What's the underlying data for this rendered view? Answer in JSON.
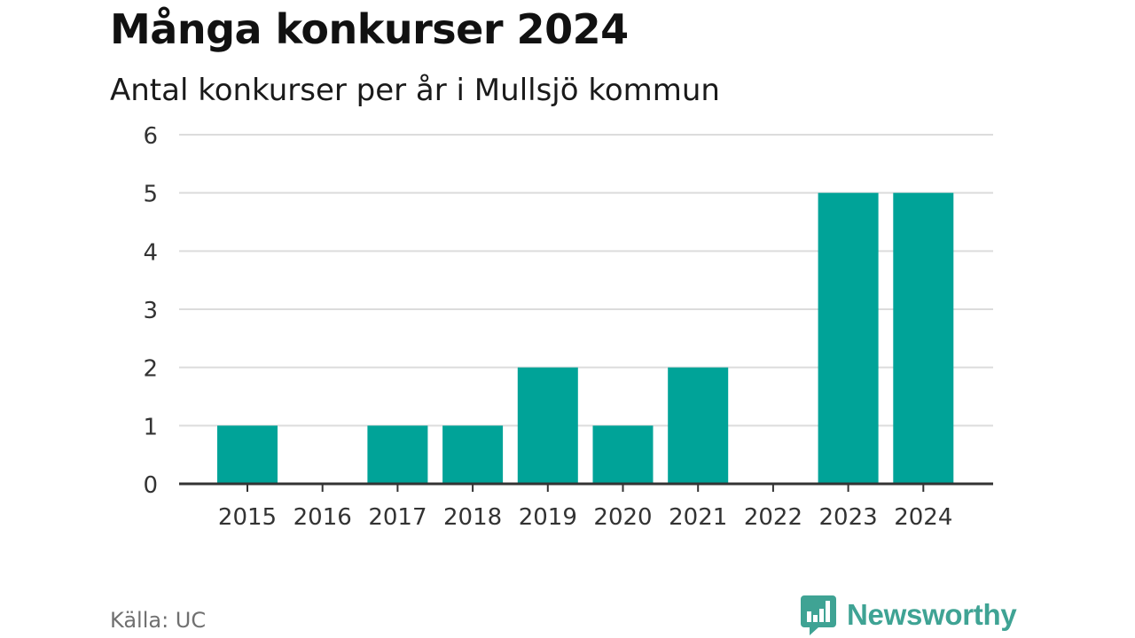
{
  "title": "Många konkurser 2024",
  "subtitle": "Antal konkurser per år i Mullsjö kommun",
  "source": "Källa: UC",
  "brand": {
    "name": "Newsworthy",
    "color": "#3fa394"
  },
  "chart_data": {
    "type": "bar",
    "title": "Många konkurser 2024",
    "subtitle": "Antal konkurser per år i Mullsjö kommun",
    "xlabel": "",
    "ylabel": "",
    "categories": [
      "2015",
      "2016",
      "2017",
      "2018",
      "2019",
      "2020",
      "2021",
      "2022",
      "2023",
      "2024"
    ],
    "values": [
      1,
      0,
      1,
      1,
      2,
      1,
      2,
      0,
      5,
      5
    ],
    "ylim": [
      0,
      6
    ],
    "yticks": [
      "0",
      "1",
      "2",
      "3",
      "4",
      "5",
      "6"
    ],
    "grid": true,
    "legend": "none",
    "bar_color": "#00a398"
  }
}
